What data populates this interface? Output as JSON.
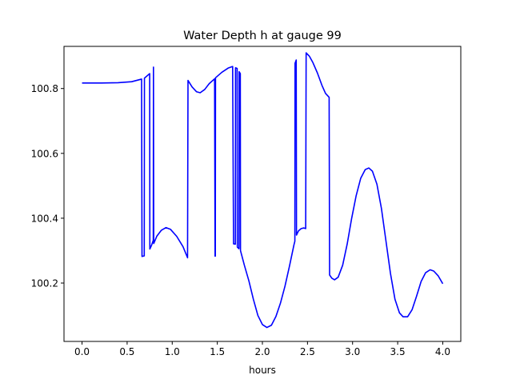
{
  "chart_data": {
    "type": "line",
    "title": "Water Depth h at gauge 99",
    "xlabel": "hours",
    "ylabel": "",
    "xlim": [
      -0.2,
      4.2
    ],
    "ylim": [
      100.02,
      100.93
    ],
    "xticks": [
      0.0,
      0.5,
      1.0,
      1.5,
      2.0,
      2.5,
      3.0,
      3.5,
      4.0
    ],
    "xtick_labels": [
      "0.0",
      "0.5",
      "1.0",
      "1.5",
      "2.0",
      "2.5",
      "3.0",
      "3.5",
      "4.0"
    ],
    "yticks": [
      100.2,
      100.4,
      100.6,
      100.8
    ],
    "ytick_labels": [
      "100.2",
      "100.4",
      "100.6",
      "100.8"
    ],
    "grid": false,
    "series": [
      {
        "color": "#0000ff",
        "points": [
          [
            0.0,
            100.817
          ],
          [
            0.2,
            100.817
          ],
          [
            0.4,
            100.818
          ],
          [
            0.55,
            100.821
          ],
          [
            0.66,
            100.829
          ],
          [
            0.665,
            100.282
          ],
          [
            0.69,
            100.284
          ],
          [
            0.692,
            100.832
          ],
          [
            0.75,
            100.846
          ],
          [
            0.752,
            100.305
          ],
          [
            0.77,
            100.316
          ],
          [
            0.79,
            100.332
          ],
          [
            0.792,
            100.866
          ],
          [
            0.795,
            100.322
          ],
          [
            0.83,
            100.345
          ],
          [
            0.88,
            100.363
          ],
          [
            0.93,
            100.371
          ],
          [
            0.98,
            100.366
          ],
          [
            1.05,
            100.344
          ],
          [
            1.12,
            100.312
          ],
          [
            1.17,
            100.278
          ],
          [
            1.175,
            100.825
          ],
          [
            1.22,
            100.805
          ],
          [
            1.27,
            100.79
          ],
          [
            1.31,
            100.787
          ],
          [
            1.36,
            100.797
          ],
          [
            1.41,
            100.815
          ],
          [
            1.47,
            100.83
          ],
          [
            1.475,
            100.283
          ],
          [
            1.478,
            100.283
          ],
          [
            1.48,
            100.833
          ],
          [
            1.55,
            100.85
          ],
          [
            1.62,
            100.863
          ],
          [
            1.67,
            100.868
          ],
          [
            1.68,
            100.321
          ],
          [
            1.7,
            100.32
          ],
          [
            1.702,
            100.864
          ],
          [
            1.72,
            100.862
          ],
          [
            1.722,
            100.311
          ],
          [
            1.74,
            100.306
          ],
          [
            1.742,
            100.852
          ],
          [
            1.755,
            100.846
          ],
          [
            1.757,
            100.3
          ],
          [
            1.8,
            100.255
          ],
          [
            1.85,
            100.207
          ],
          [
            1.9,
            100.15
          ],
          [
            1.95,
            100.1
          ],
          [
            2.0,
            100.072
          ],
          [
            2.05,
            100.063
          ],
          [
            2.1,
            100.07
          ],
          [
            2.15,
            100.097
          ],
          [
            2.2,
            100.138
          ],
          [
            2.25,
            100.19
          ],
          [
            2.3,
            100.252
          ],
          [
            2.35,
            100.318
          ],
          [
            2.36,
            100.329
          ],
          [
            2.362,
            100.878
          ],
          [
            2.375,
            100.888
          ],
          [
            2.378,
            100.348
          ],
          [
            2.4,
            100.361
          ],
          [
            2.43,
            100.368
          ],
          [
            2.46,
            100.37
          ],
          [
            2.48,
            100.368
          ],
          [
            2.485,
            100.91
          ],
          [
            2.52,
            100.9
          ],
          [
            2.56,
            100.88
          ],
          [
            2.61,
            100.848
          ],
          [
            2.66,
            100.81
          ],
          [
            2.7,
            100.785
          ],
          [
            2.74,
            100.773
          ],
          [
            2.745,
            100.225
          ],
          [
            2.77,
            100.215
          ],
          [
            2.8,
            100.21
          ],
          [
            2.84,
            100.218
          ],
          [
            2.89,
            100.255
          ],
          [
            2.94,
            100.32
          ],
          [
            2.99,
            100.4
          ],
          [
            3.04,
            100.47
          ],
          [
            3.09,
            100.523
          ],
          [
            3.14,
            100.55
          ],
          [
            3.18,
            100.555
          ],
          [
            3.22,
            100.545
          ],
          [
            3.27,
            100.505
          ],
          [
            3.32,
            100.43
          ],
          [
            3.37,
            100.33
          ],
          [
            3.42,
            100.23
          ],
          [
            3.47,
            100.15
          ],
          [
            3.52,
            100.108
          ],
          [
            3.56,
            100.096
          ],
          [
            3.61,
            100.096
          ],
          [
            3.66,
            100.118
          ],
          [
            3.71,
            100.16
          ],
          [
            3.76,
            100.205
          ],
          [
            3.81,
            100.232
          ],
          [
            3.86,
            100.241
          ],
          [
            3.9,
            100.237
          ],
          [
            3.95,
            100.222
          ],
          [
            4.0,
            100.198
          ]
        ]
      }
    ]
  }
}
